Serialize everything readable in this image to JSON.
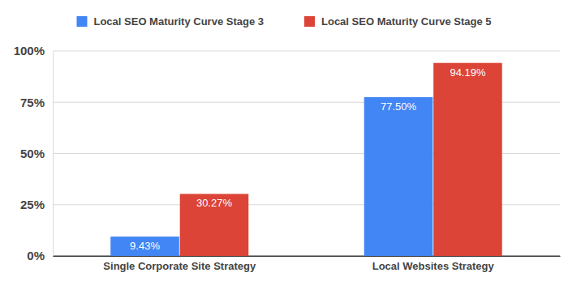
{
  "chart_data": {
    "type": "bar",
    "categories": [
      "Single Corporate Site Strategy",
      "Local Websites Strategy"
    ],
    "series": [
      {
        "name": "Local SEO Maturity Curve Stage 3",
        "color": "#4285f4",
        "values": [
          9.43,
          77.5
        ],
        "value_labels": [
          "9.43%",
          "77.50%"
        ]
      },
      {
        "name": "Local SEO Maturity Curve Stage 5",
        "color": "#db4437",
        "values": [
          30.27,
          94.19
        ],
        "value_labels": [
          "30.27%",
          "94.19%"
        ]
      }
    ],
    "ylim": [
      0,
      100
    ],
    "yticks": [
      {
        "value": 0,
        "label": "0%"
      },
      {
        "value": 25,
        "label": "25%"
      },
      {
        "value": 50,
        "label": "50%"
      },
      {
        "value": 75,
        "label": "75%"
      },
      {
        "value": 100,
        "label": "100%"
      }
    ],
    "grid": true,
    "legend": "top",
    "data_labels": true
  }
}
